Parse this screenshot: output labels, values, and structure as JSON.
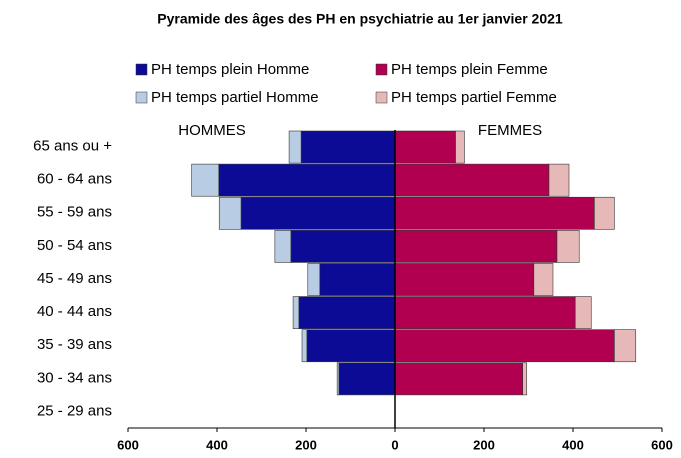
{
  "chart_data": {
    "type": "pyramid",
    "title": "Pyramide des âges des PH en psychiatrie au 1er janvier 2021",
    "annotations": [
      "HOMMES",
      "FEMMES"
    ],
    "categories": [
      "65 ans ou +",
      "60 - 64 ans",
      "55 - 59 ans",
      "50 - 54 ans",
      "45 - 49 ans",
      "40 - 44 ans",
      "35 - 39 ans",
      "30 - 34 ans",
      "25 - 29 ans"
    ],
    "series": [
      {
        "name": "PH temps plein Homme",
        "color": "#0b0b96",
        "side": "left",
        "values": [
          211,
          396,
          346,
          234,
          169,
          216,
          198,
          126,
          0
        ]
      },
      {
        "name": "PH temps plein Femme",
        "color": "#b0004f",
        "side": "right",
        "values": [
          136,
          346,
          448,
          364,
          312,
          405,
          493,
          287,
          0
        ]
      },
      {
        "name": "PH temps partiel Homme",
        "color": "#b8cce4",
        "side": "left",
        "values": [
          27,
          61,
          49,
          36,
          27,
          13,
          11,
          4,
          0
        ]
      },
      {
        "name": "PH temps partiel Femme",
        "color": "#e6b9b8",
        "side": "right",
        "values": [
          20,
          45,
          45,
          50,
          43,
          36,
          48,
          9,
          0
        ]
      }
    ],
    "xlim": [
      -600,
      600
    ],
    "xticks": [
      {
        "value": -600,
        "label": "600"
      },
      {
        "value": -400,
        "label": "400"
      },
      {
        "value": -200,
        "label": "200"
      },
      0,
      200,
      400,
      600
    ],
    "grid": false
  }
}
